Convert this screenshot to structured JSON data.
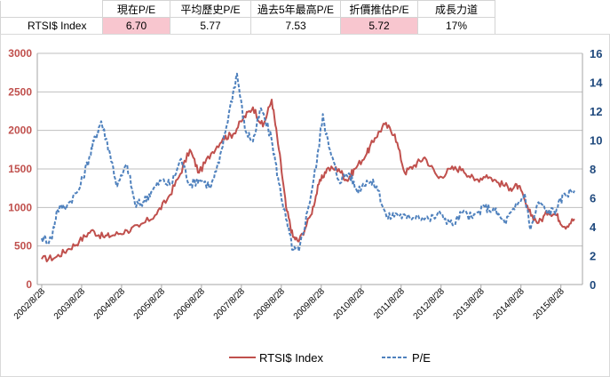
{
  "summary_table": {
    "headers": [
      "",
      "現在P/E",
      "平均歷史P/E",
      "過去5年最高P/E",
      "折價推估P/E",
      "成長力道"
    ],
    "row": {
      "label": "RTSI$ Index",
      "current_pe": "6.70",
      "avg_pe": "5.77",
      "max5y_pe": "7.53",
      "discount_pe": "5.72",
      "growth": "17%"
    },
    "highlight_color": "#f8c6cf"
  },
  "chart_data": {
    "type": "line",
    "title": "",
    "x_tick_labels": [
      "2002/8/28",
      "2003/8/28",
      "2004/8/28",
      "2005/8/28",
      "2006/8/28",
      "2007/8/28",
      "2008/8/28",
      "2009/8/28",
      "2010/8/28",
      "2011/8/28",
      "2012/8/28",
      "2013/8/28",
      "2014/8/28",
      "2015/8/28"
    ],
    "x_range": [
      2002.55,
      2016.2
    ],
    "y_left": {
      "ticks": [
        "0",
        "500",
        "1000",
        "1500",
        "2000",
        "2500",
        "3000"
      ],
      "range": [
        0,
        3000
      ],
      "color": "#c0504d"
    },
    "y_right": {
      "ticks": [
        "0",
        "2",
        "4",
        "6",
        "8",
        "10",
        "12",
        "14",
        "16"
      ],
      "range": [
        0,
        16
      ],
      "color": "#1f497d"
    },
    "grid": "horizontal",
    "legend_position": "bottom",
    "series": [
      {
        "name": "RTSI$ Index",
        "axis": "left",
        "color": "#c0504d",
        "style": "solid",
        "x": [
          2002.66,
          2003.0,
          2003.3,
          2003.6,
          2003.9,
          2004.2,
          2004.45,
          2004.8,
          2005.1,
          2005.5,
          2005.8,
          2006.1,
          2006.37,
          2006.6,
          2006.9,
          2007.2,
          2007.45,
          2007.7,
          2007.95,
          2008.2,
          2008.42,
          2008.6,
          2008.78,
          2008.95,
          2009.1,
          2009.4,
          2009.6,
          2009.8,
          2010.1,
          2010.3,
          2010.5,
          2010.8,
          2011.0,
          2011.25,
          2011.5,
          2011.75,
          2012.0,
          2012.25,
          2012.6,
          2012.9,
          2013.2,
          2013.5,
          2013.8,
          2014.1,
          2014.4,
          2014.6,
          2014.85,
          2015.1,
          2015.35,
          2015.55,
          2015.75,
          2016.0
        ],
        "values": [
          330,
          350,
          450,
          560,
          700,
          620,
          640,
          700,
          750,
          900,
          1100,
          1400,
          1750,
          1450,
          1700,
          1900,
          1950,
          2150,
          2300,
          2050,
          2400,
          1750,
          1000,
          620,
          560,
          900,
          1300,
          1500,
          1500,
          1350,
          1500,
          1700,
          1900,
          2080,
          1950,
          1450,
          1550,
          1650,
          1380,
          1500,
          1500,
          1350,
          1420,
          1320,
          1250,
          1280,
          950,
          800,
          950,
          900,
          750,
          850
        ]
      },
      {
        "name": "P/E",
        "axis": "right",
        "color": "#4f81bd",
        "style": "dashed",
        "x": [
          2002.66,
          2002.9,
          2003.05,
          2003.3,
          2003.6,
          2003.85,
          2004.0,
          2004.15,
          2004.35,
          2004.55,
          2004.8,
          2005.0,
          2005.2,
          2005.4,
          2005.65,
          2005.9,
          2006.15,
          2006.37,
          2006.6,
          2006.9,
          2007.1,
          2007.35,
          2007.55,
          2007.75,
          2007.95,
          2008.15,
          2008.42,
          2008.6,
          2008.78,
          2008.95,
          2009.1,
          2009.35,
          2009.55,
          2009.7,
          2009.85,
          2010.1,
          2010.35,
          2010.55,
          2010.8,
          2011.05,
          2011.3,
          2011.55,
          2011.8,
          2012.05,
          2012.35,
          2012.65,
          2012.95,
          2013.2,
          2013.45,
          2013.75,
          2014.0,
          2014.25,
          2014.5,
          2014.75,
          2014.9,
          2015.1,
          2015.35,
          2015.55,
          2015.75,
          2016.0
        ],
        "values": [
          3.2,
          3.1,
          5.2,
          5.5,
          6.6,
          8.8,
          10.2,
          11.3,
          9.3,
          6.8,
          8.3,
          5.5,
          5.7,
          6.4,
          7.2,
          6.9,
          8.7,
          6.9,
          7.3,
          6.8,
          8.4,
          11.9,
          14.6,
          10.7,
          9.9,
          12.2,
          10.0,
          7.0,
          4.5,
          2.4,
          2.3,
          5.5,
          8.5,
          11.8,
          9.5,
          7.2,
          7.7,
          6.5,
          7.2,
          6.8,
          4.6,
          4.9,
          4.6,
          4.8,
          4.5,
          4.9,
          4.1,
          5.0,
          4.6,
          5.4,
          5.1,
          4.3,
          5.2,
          6.3,
          3.8,
          5.7,
          5.0,
          5.2,
          6.3,
          6.5
        ]
      }
    ]
  }
}
